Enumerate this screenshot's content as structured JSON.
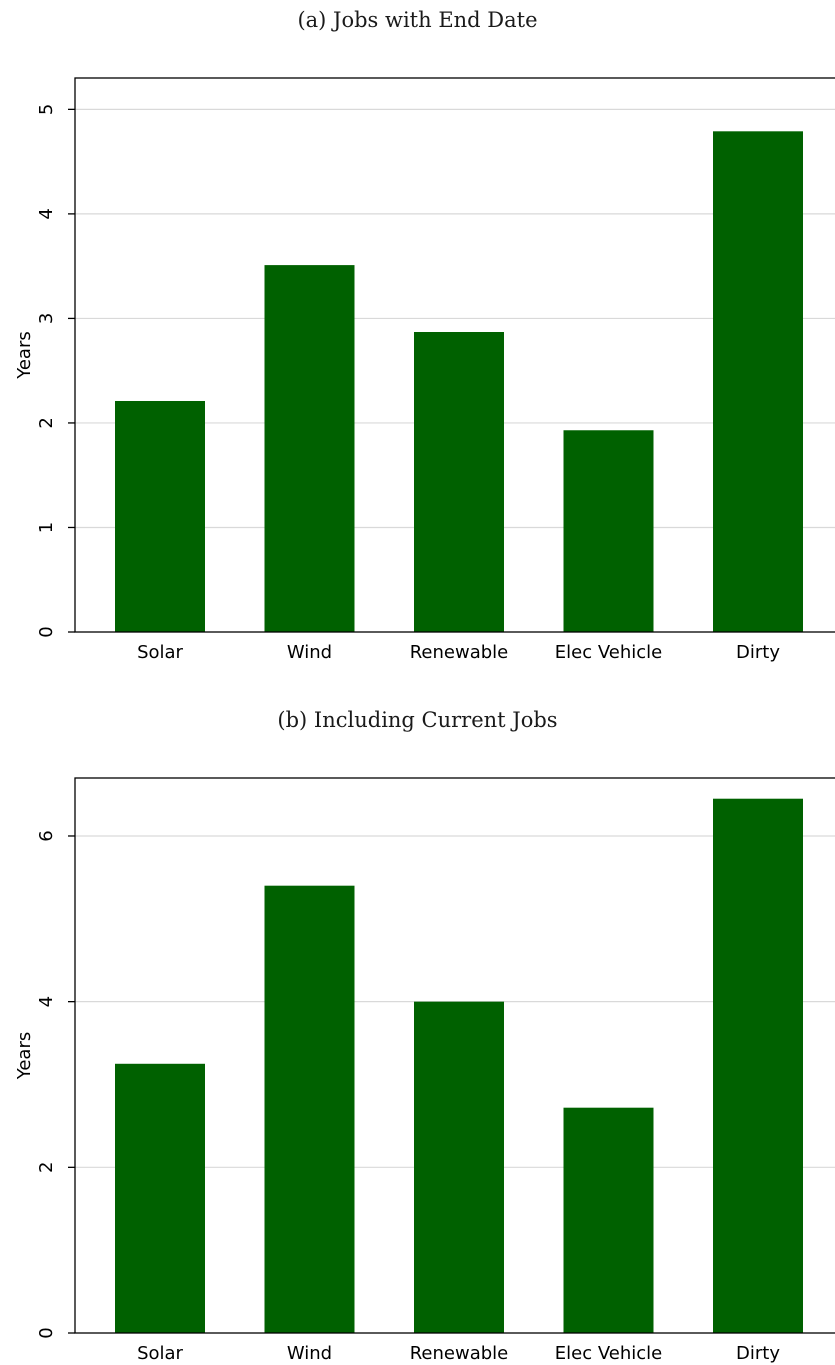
{
  "chart_data": [
    {
      "type": "bar",
      "title": "(a) Jobs with End Date",
      "ylabel": "Years",
      "xlabel": "",
      "categories": [
        "Solar",
        "Wind",
        "Renewable",
        "Elec Vehicle",
        "Dirty"
      ],
      "values": [
        2.21,
        3.51,
        2.87,
        1.93,
        4.79
      ],
      "ylim": [
        0,
        5.3
      ],
      "yticks": [
        0,
        1,
        2,
        3,
        4,
        5
      ],
      "grid": true,
      "color": "#006100"
    },
    {
      "type": "bar",
      "title": "(b) Including Current Jobs",
      "ylabel": "Years",
      "xlabel": "",
      "categories": [
        "Solar",
        "Wind",
        "Renewable",
        "Elec Vehicle",
        "Dirty"
      ],
      "values": [
        3.25,
        5.4,
        4.0,
        2.72,
        6.45
      ],
      "ylim": [
        0,
        6.7
      ],
      "yticks": [
        0,
        2,
        4,
        6
      ],
      "grid": true,
      "color": "#006100"
    }
  ]
}
